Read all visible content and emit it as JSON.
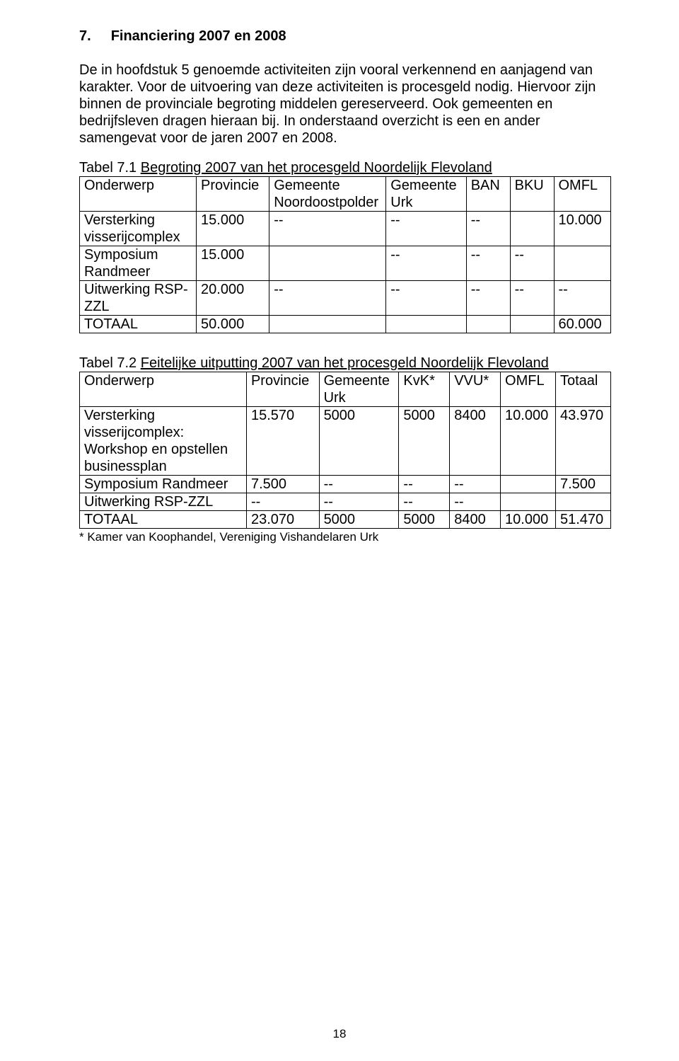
{
  "heading": {
    "number": "7.",
    "title": "Financiering 2007 en 2008"
  },
  "para1": "De  in hoofdstuk 5 genoemde activiteiten zijn vooral verkennend en aanjagend van karakter. Voor de uitvoering van deze activiteiten is procesgeld nodig. Hiervoor zijn binnen de provinciale begroting middelen gereserveerd. Ook gemeenten en bedrijfsleven dragen hieraan bij. In onderstaand overzicht is een en ander samengevat voor de jaren 2007 en 2008.",
  "table1": {
    "caption_prefix": "Tabel 7.1  ",
    "caption_underline": "Begroting 2007 van het procesgeld Noordelijk Flevoland",
    "cols": [
      "Onderwerp",
      "Provincie",
      "Gemeente Noordoostpolder",
      "Gemeente Urk",
      "BAN",
      "BKU",
      "OMFL"
    ],
    "widths": [
      160,
      100,
      160,
      110,
      60,
      60,
      78
    ],
    "rows": [
      [
        "Versterking visserijcomplex",
        "15.000",
        "--",
        "--",
        "--",
        "",
        "10.000"
      ],
      [
        "Symposium Randmeer",
        "15.000",
        "",
        "--",
        "--",
        "--",
        ""
      ],
      [
        "Uitwerking RSP-ZZL",
        "20.000",
        "--",
        "--",
        "--",
        "--",
        "--"
      ],
      [
        "TOTAAL",
        "50.000",
        "",
        "",
        "",
        "",
        "60.000"
      ]
    ]
  },
  "table2": {
    "caption_prefix": "Tabel 7.2  ",
    "caption_underline": "Feitelijke uitputting 2007 van het procesgeld Noordelijk Flevoland",
    "cols": [
      "Onderwerp",
      "Provincie",
      "Gemeente Urk",
      "KvK*",
      "VVU*",
      "OMFL",
      "Totaal"
    ],
    "widths": [
      230,
      100,
      110,
      70,
      70,
      76,
      76
    ],
    "rows": [
      [
        "Versterking visserijcomplex: Workshop en opstellen businessplan",
        "15.570",
        "5000",
        "5000",
        "8400",
        "10.000",
        "43.970"
      ],
      [
        "Symposium Randmeer",
        "7.500",
        "--",
        "--",
        "--",
        "",
        "7.500"
      ],
      [
        "Uitwerking RSP-ZZL",
        "--",
        "--",
        "--",
        "--",
        "",
        ""
      ],
      [
        "TOTAAL",
        "23.070",
        "5000",
        "5000",
        "8400",
        "10.000",
        "51.470"
      ]
    ],
    "footnote": "* Kamer van Koophandel, Vereniging Vishandelaren Urk"
  },
  "page_number": "18"
}
